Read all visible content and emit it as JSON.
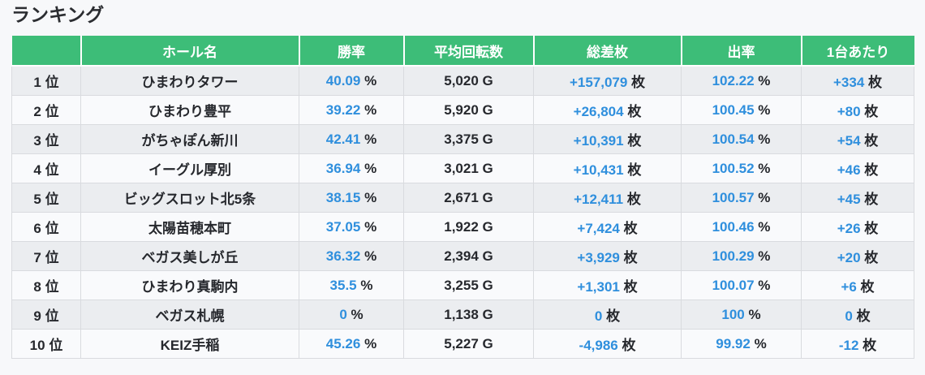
{
  "page": {
    "title": "ランキング"
  },
  "colors": {
    "header_bg": "#3dbd78",
    "header_text": "#ffffff",
    "value_blue": "#2f8fdd",
    "text_dark": "#26282d",
    "row_odd_bg": "#ebedf0",
    "row_even_bg": "#f9fafc",
    "border": "#d9dbdf"
  },
  "table": {
    "columns": [
      {
        "key": "rank",
        "label": "",
        "unit": "位",
        "blue": false
      },
      {
        "key": "hall",
        "label": "ホール名",
        "unit": "",
        "blue": false
      },
      {
        "key": "win_rate",
        "label": "勝率",
        "unit": "%",
        "blue": true
      },
      {
        "key": "spins",
        "label": "平均回転数",
        "unit": "G",
        "blue": false
      },
      {
        "key": "total_diff",
        "label": "総差枚",
        "unit": "枚",
        "blue": true
      },
      {
        "key": "payout",
        "label": "出率",
        "unit": "%",
        "blue": true
      },
      {
        "key": "per_machine",
        "label": "1台あたり",
        "unit": "枚",
        "blue": true
      }
    ],
    "rows": [
      {
        "rank": "1",
        "hall": "ひまわりタワー",
        "win_rate": "40.09",
        "spins": "5,020",
        "total_diff": "+157,079",
        "payout": "102.22",
        "per_machine": "+334"
      },
      {
        "rank": "2",
        "hall": "ひまわり豊平",
        "win_rate": "39.22",
        "spins": "5,920",
        "total_diff": "+26,804",
        "payout": "100.45",
        "per_machine": "+80"
      },
      {
        "rank": "3",
        "hall": "がちゃぽん新川",
        "win_rate": "42.41",
        "spins": "3,375",
        "total_diff": "+10,391",
        "payout": "100.54",
        "per_machine": "+54"
      },
      {
        "rank": "4",
        "hall": "イーグル厚別",
        "win_rate": "36.94",
        "spins": "3,021",
        "total_diff": "+10,431",
        "payout": "100.52",
        "per_machine": "+46"
      },
      {
        "rank": "5",
        "hall": "ビッグスロット北5条",
        "win_rate": "38.15",
        "spins": "2,671",
        "total_diff": "+12,411",
        "payout": "100.57",
        "per_machine": "+45"
      },
      {
        "rank": "6",
        "hall": "太陽苗穂本町",
        "win_rate": "37.05",
        "spins": "1,922",
        "total_diff": "+7,424",
        "payout": "100.46",
        "per_machine": "+26"
      },
      {
        "rank": "7",
        "hall": "ベガス美しが丘",
        "win_rate": "36.32",
        "spins": "2,394",
        "total_diff": "+3,929",
        "payout": "100.29",
        "per_machine": "+20"
      },
      {
        "rank": "8",
        "hall": "ひまわり真駒内",
        "win_rate": "35.5",
        "spins": "3,255",
        "total_diff": "+1,301",
        "payout": "100.07",
        "per_machine": "+6"
      },
      {
        "rank": "9",
        "hall": "ベガス札幌",
        "win_rate": "0",
        "spins": "1,138",
        "total_diff": "0",
        "payout": "100",
        "per_machine": "0"
      },
      {
        "rank": "10",
        "hall": "KEIZ手稲",
        "win_rate": "45.26",
        "spins": "5,227",
        "total_diff": "-4,986",
        "payout": "99.92",
        "per_machine": "-12"
      }
    ]
  }
}
